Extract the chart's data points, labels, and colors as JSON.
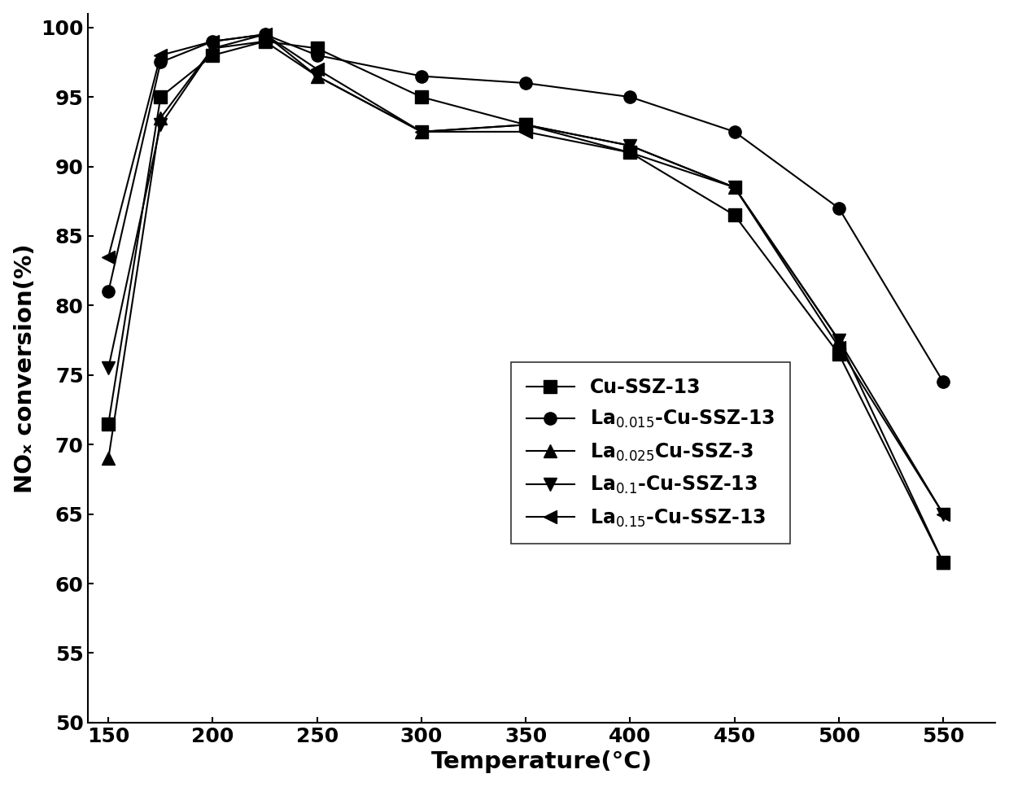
{
  "title": "",
  "xlabel": "Temperature(°C)",
  "ylabel": "NOₓ conversion(%)",
  "xlim": [
    140,
    575
  ],
  "ylim": [
    50,
    101
  ],
  "yticks": [
    50,
    55,
    60,
    65,
    70,
    75,
    80,
    85,
    90,
    95,
    100
  ],
  "xticks": [
    150,
    200,
    250,
    300,
    350,
    400,
    450,
    500,
    550
  ],
  "series": [
    {
      "label": "Cu-SSZ-13",
      "marker": "s",
      "color": "#000000",
      "linecolor": "#000000",
      "x": [
        150,
        175,
        200,
        225,
        250,
        300,
        350,
        400,
        450,
        500,
        550
      ],
      "y": [
        71.5,
        95.0,
        98.0,
        99.0,
        98.5,
        95.0,
        93.0,
        91.0,
        86.5,
        76.5,
        61.5
      ]
    },
    {
      "label": "La$_{0.015}$-Cu-SSZ-13",
      "marker": "o",
      "color": "#000000",
      "linecolor": "#000000",
      "x": [
        150,
        175,
        200,
        225,
        250,
        300,
        350,
        400,
        450,
        500,
        550
      ],
      "y": [
        81.0,
        97.5,
        99.0,
        99.5,
        98.0,
        96.5,
        96.0,
        95.0,
        92.5,
        87.0,
        74.5
      ]
    },
    {
      "label": "La$_{0.025}$Cu-SSZ-3",
      "marker": "^",
      "color": "#000000",
      "linecolor": "#000000",
      "x": [
        150,
        175,
        200,
        225,
        250,
        300,
        350,
        400,
        450,
        500,
        550
      ],
      "y": [
        69.0,
        93.5,
        98.5,
        99.5,
        96.5,
        92.5,
        93.0,
        91.5,
        88.5,
        77.5,
        61.5
      ]
    },
    {
      "label": "La$_{0.1}$-Cu-SSZ-13",
      "marker": "v",
      "color": "#000000",
      "linecolor": "#000000",
      "x": [
        150,
        175,
        200,
        225,
        250,
        300,
        350,
        400,
        450,
        500,
        550
      ],
      "y": [
        75.5,
        93.0,
        98.5,
        99.0,
        96.5,
        92.5,
        93.0,
        91.5,
        88.5,
        77.5,
        65.0
      ]
    },
    {
      "label": "La$_{0.15}$-Cu-SSZ-13",
      "marker": "<",
      "color": "#000000",
      "linecolor": "#000000",
      "x": [
        150,
        175,
        200,
        225,
        250,
        300,
        350,
        400,
        450,
        500,
        550
      ],
      "y": [
        83.5,
        98.0,
        99.0,
        99.5,
        97.0,
        92.5,
        92.5,
        91.0,
        88.5,
        77.0,
        65.0
      ]
    }
  ],
  "fontsize": 17,
  "tick_fontsize": 18,
  "label_fontsize": 21
}
